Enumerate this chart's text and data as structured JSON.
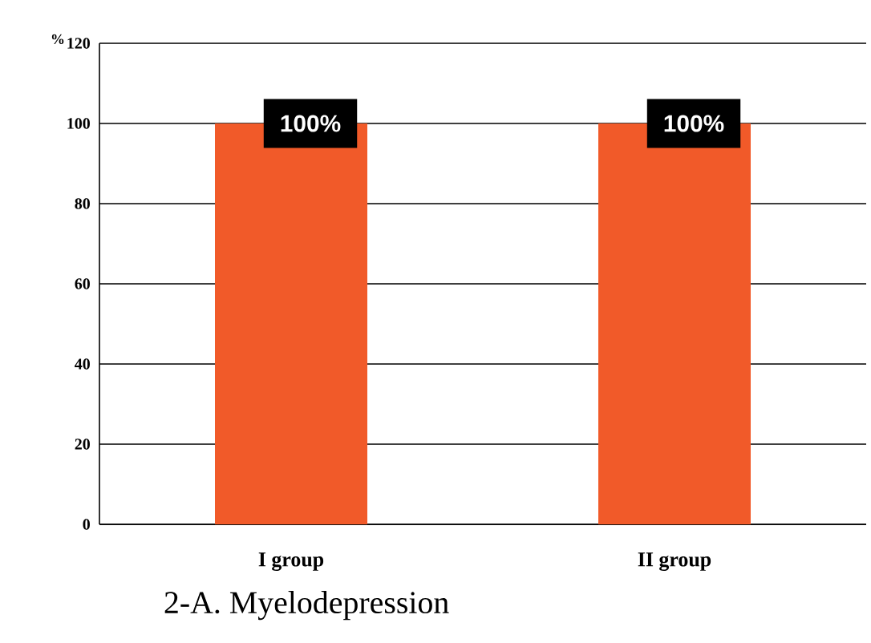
{
  "chart_data": {
    "type": "bar",
    "title": "2-A. Myelodepression",
    "ylabel": "%",
    "categories": [
      "I group",
      "II group"
    ],
    "values": [
      100,
      100
    ],
    "value_labels": [
      "100%",
      "100%"
    ],
    "color": "#f15a29",
    "ylim": [
      0,
      120
    ],
    "yticks": [
      0,
      20,
      40,
      60,
      80,
      100,
      120
    ],
    "grid": "y"
  }
}
